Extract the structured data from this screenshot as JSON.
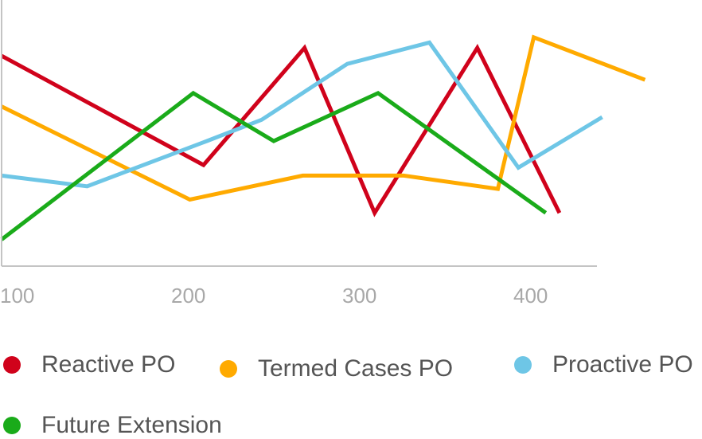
{
  "chart_data": {
    "type": "line",
    "xlim": [
      100,
      500
    ],
    "ylim": [
      0,
      100
    ],
    "x_ticks": [
      {
        "value": 100,
        "label": "100"
      },
      {
        "value": 200,
        "label": "200"
      },
      {
        "value": 300,
        "label": "300"
      },
      {
        "value": 400,
        "label": "400"
      }
    ],
    "grid": false,
    "legend_placement": "bottom",
    "series": [
      {
        "name": "Reactive PO",
        "color": "#d0021b",
        "points": [
          [
            100,
            79
          ],
          [
            218,
            38
          ],
          [
            277,
            82
          ],
          [
            318,
            20
          ],
          [
            378,
            82
          ],
          [
            426,
            20
          ]
        ]
      },
      {
        "name": "Termed Cases PO",
        "color": "#ffaa00",
        "points": [
          [
            100,
            60
          ],
          [
            210,
            25
          ],
          [
            276,
            34
          ],
          [
            335,
            34
          ],
          [
            390,
            29
          ],
          [
            411,
            86
          ],
          [
            476,
            70
          ]
        ]
      },
      {
        "name": "Proactive PO",
        "color": "#6ec6e6",
        "points": [
          [
            100,
            34
          ],
          [
            150,
            30
          ],
          [
            220,
            47
          ],
          [
            252,
            55
          ],
          [
            302,
            76
          ],
          [
            350,
            84
          ],
          [
            402,
            37
          ],
          [
            451,
            56
          ]
        ]
      },
      {
        "name": "Future Extension",
        "color": "#1aab1a",
        "points": [
          [
            100,
            10
          ],
          [
            212,
            65
          ],
          [
            259,
            47
          ],
          [
            320,
            65
          ],
          [
            418,
            20
          ]
        ]
      }
    ]
  }
}
